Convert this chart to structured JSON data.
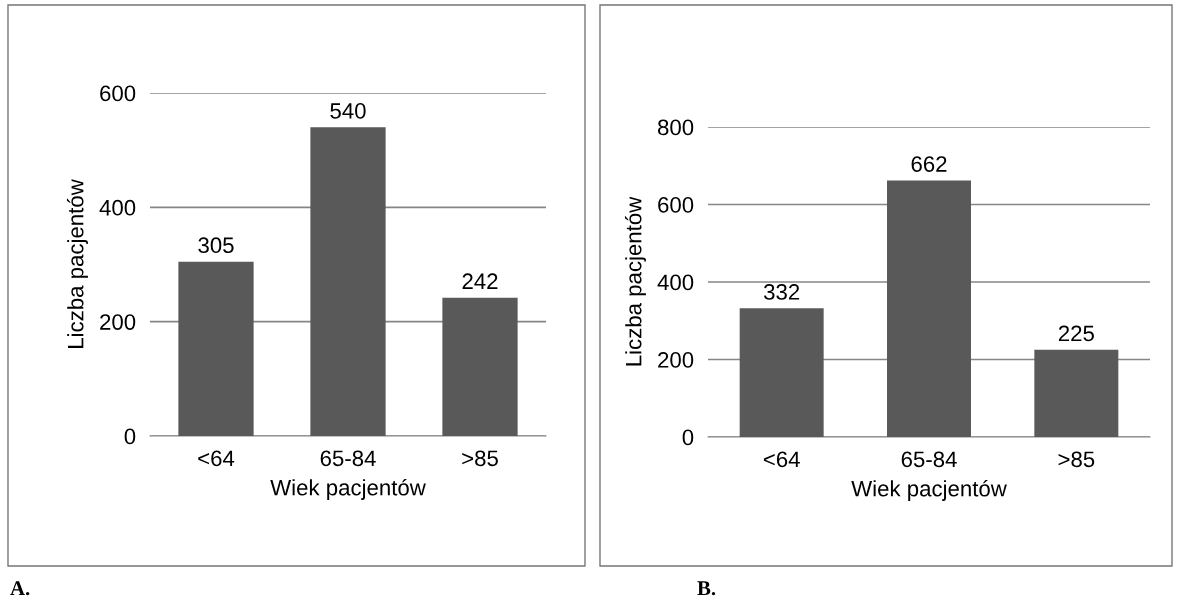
{
  "chart_data": [
    {
      "type": "bar",
      "categories": [
        "<64",
        "65-84",
        ">85"
      ],
      "values": [
        305,
        540,
        242
      ],
      "color": "#595959",
      "xlabel": "Wiek pacjentów",
      "ylabel": "Liczba pacjentów",
      "ylim": [
        0,
        600
      ],
      "yticks": [
        0,
        200,
        400,
        600
      ],
      "grid": "y",
      "data_labels": true,
      "annotations": [
        "A."
      ]
    },
    {
      "type": "bar",
      "categories": [
        "<64",
        "65-84",
        ">85"
      ],
      "values": [
        332,
        662,
        225
      ],
      "color": "#595959",
      "xlabel": "Wiek pacjentów",
      "ylabel": "Liczba pacjentów",
      "ylim": [
        0,
        800
      ],
      "yticks": [
        0,
        200,
        400,
        600,
        800
      ],
      "grid": "y",
      "data_labels": true,
      "annotations": [
        "B."
      ]
    }
  ]
}
